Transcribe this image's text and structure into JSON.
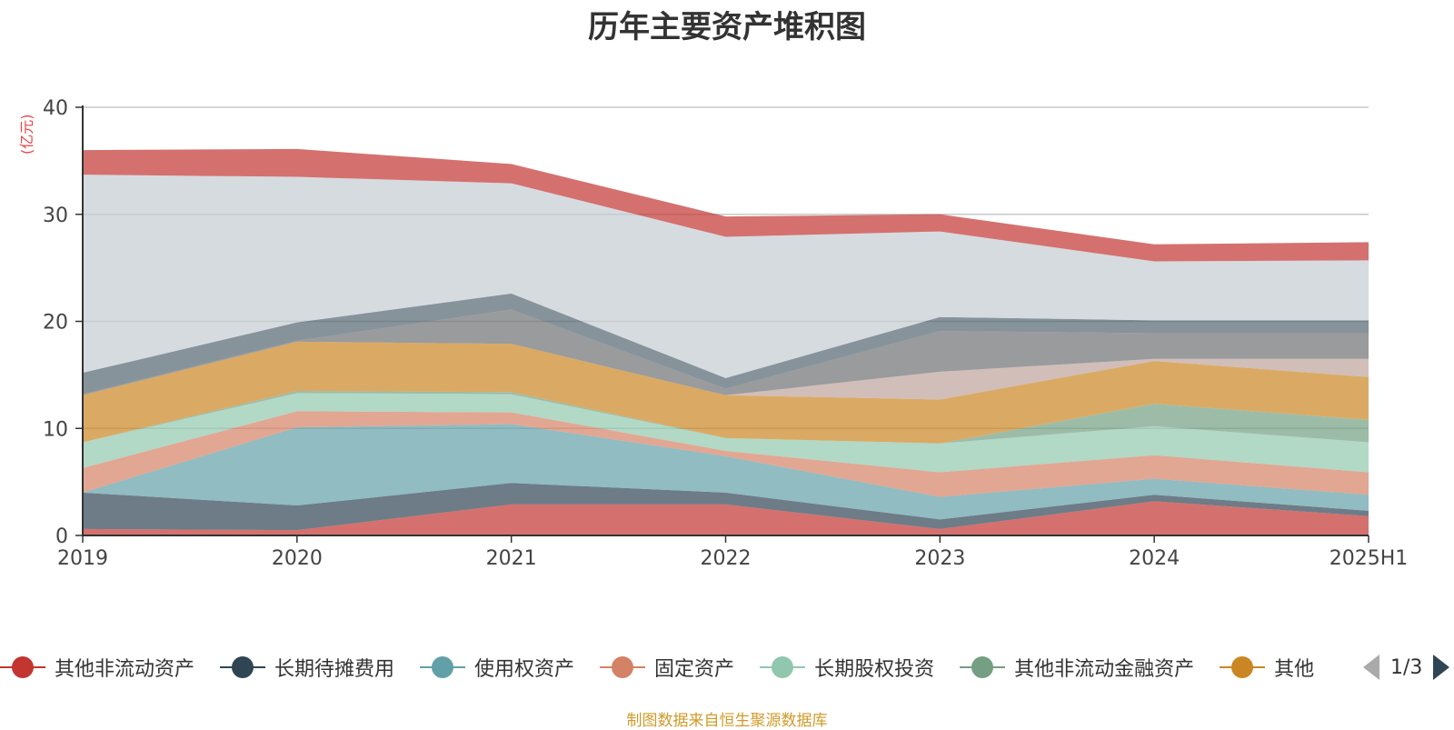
{
  "title": "历年主要资产堆积图",
  "y_unit": "(亿元)",
  "source": "制图数据来自恒生聚源数据库",
  "pager": {
    "text": "1/3"
  },
  "legend": [
    {
      "label": "其他非流动资产",
      "color": "#c23531"
    },
    {
      "label": "长期待摊费用",
      "color": "#2f4554"
    },
    {
      "label": "使用权资产",
      "color": "#61a0a8"
    },
    {
      "label": "固定资产",
      "color": "#d48265"
    },
    {
      "label": "长期股权投资",
      "color": "#91c7ae"
    },
    {
      "label": "其他非流动金融资产",
      "color": "#749f83"
    },
    {
      "label": "其他",
      "color": "#ca8622"
    }
  ],
  "chart_data": {
    "type": "area",
    "stacked": true,
    "categories": [
      "2019",
      "2020",
      "2021",
      "2022",
      "2023",
      "2024",
      "2025H1"
    ],
    "ylim": [
      0,
      40
    ],
    "yticks": [
      0,
      10,
      20,
      30,
      40
    ],
    "grid": true,
    "legend_position": "bottom",
    "series": [
      {
        "name": "其他非流动资产",
        "color": "#c23531",
        "values": [
          0.6,
          0.5,
          2.9,
          2.9,
          0.6,
          3.2,
          1.8
        ]
      },
      {
        "name": "长期待摊费用",
        "color": "#2f4554",
        "values": [
          3.4,
          2.3,
          2.0,
          1.1,
          0.9,
          0.6,
          0.5
        ]
      },
      {
        "name": "使用权资产",
        "color": "#61a0a8",
        "values": [
          0,
          7.3,
          5.5,
          3.4,
          2.1,
          1.5,
          1.5
        ]
      },
      {
        "name": "固定资产",
        "color": "#d48265",
        "values": [
          2.3,
          1.5,
          1.1,
          0.5,
          2.3,
          2.2,
          2.1
        ]
      },
      {
        "name": "长期股权投资",
        "color": "#91c7ae",
        "values": [
          2.4,
          1.7,
          1.7,
          1.2,
          2.7,
          2.7,
          2.8
        ]
      },
      {
        "name": "其他非流动金融资产",
        "color": "#749f83",
        "values": [
          0,
          0.2,
          0.2,
          0,
          0,
          2.1,
          2.1
        ]
      },
      {
        "name": "其他",
        "color": "#ca8622",
        "values": [
          4.4,
          4.6,
          4.5,
          4.0,
          4.1,
          4.0,
          4.0
        ]
      },
      {
        "name": "",
        "color": "#bda29a",
        "values": [
          0,
          0,
          0,
          0,
          2.6,
          0.2,
          1.7
        ]
      },
      {
        "name": "",
        "color": "#6e7074",
        "values": [
          0.1,
          0.1,
          3.2,
          0.6,
          3.8,
          2.4,
          2.4
        ]
      },
      {
        "name": "",
        "color": "#546570",
        "values": [
          2.0,
          1.7,
          1.5,
          1.0,
          1.3,
          1.2,
          1.2
        ]
      },
      {
        "name": "",
        "color": "#c4ccd3",
        "values": [
          18.5,
          13.6,
          10.3,
          13.2,
          8.0,
          5.5,
          5.6
        ]
      },
      {
        "name": "",
        "color": "#c23531",
        "values": [
          2.3,
          2.6,
          1.8,
          1.9,
          1.6,
          1.6,
          1.7
        ]
      }
    ]
  }
}
